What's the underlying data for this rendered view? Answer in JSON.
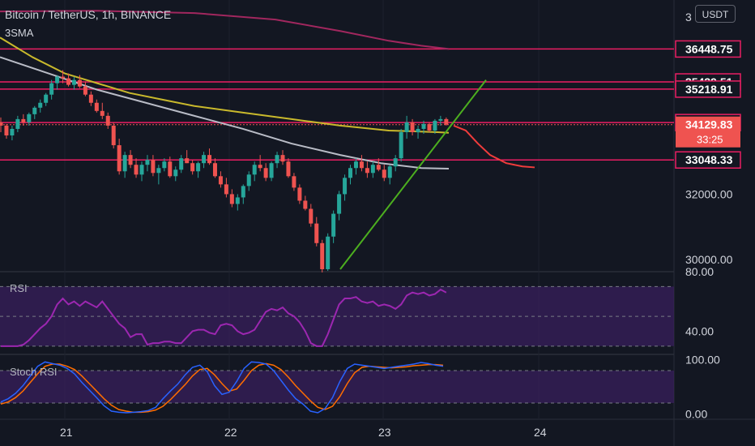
{
  "header": {
    "title": "Bitcoin / TetherUS, 1h, BINANCE",
    "indicator": "3SMA",
    "currency_button": "USDT"
  },
  "chart_data": [
    {
      "type": "candlestick",
      "title": "Bitcoin / TetherUS, 1h, BINANCE",
      "x_ticks": [
        "21",
        "22",
        "23",
        "24"
      ],
      "y_ticks": [
        32000.0,
        30000.0
      ],
      "ylim": [
        29650,
        37950
      ],
      "price_levels": [
        36448.75,
        35439.51,
        35218.91,
        34194.29,
        33048.33
      ],
      "current_price": 34129.83,
      "countdown": "33:25",
      "top_tick_partial": "3",
      "colors": {
        "up": "#26a69a",
        "down": "#ef5350",
        "levels": "#e91e63",
        "sma_fast": "#c9b92c",
        "sma_slow": "#b9bcc6",
        "sma_long": "#a1275e",
        "trendline": "#4caf1f",
        "projection": "#ef3c3c"
      },
      "candles": [
        [
          34200,
          34350,
          33900,
          34100
        ],
        [
          34100,
          34150,
          33700,
          33800
        ],
        [
          33800,
          34100,
          33650,
          34000
        ],
        [
          34000,
          34400,
          33900,
          34300
        ],
        [
          34300,
          34450,
          34100,
          34200
        ],
        [
          34200,
          34500,
          34100,
          34450
        ],
        [
          34450,
          34700,
          34300,
          34650
        ],
        [
          34650,
          34900,
          34500,
          34800
        ],
        [
          34800,
          35100,
          34700,
          35050
        ],
        [
          35050,
          35500,
          34900,
          35400
        ],
        [
          35400,
          35650,
          35200,
          35600
        ],
        [
          35600,
          35800,
          35400,
          35550
        ],
        [
          35550,
          35700,
          35300,
          35350
        ],
        [
          35350,
          35600,
          35200,
          35500
        ],
        [
          35500,
          35650,
          35250,
          35300
        ],
        [
          35300,
          35450,
          35000,
          35050
        ],
        [
          35050,
          35150,
          34700,
          34800
        ],
        [
          34800,
          34900,
          34500,
          34550
        ],
        [
          34550,
          34800,
          34300,
          34400
        ],
        [
          34400,
          34500,
          34000,
          34100
        ],
        [
          34100,
          34200,
          33400,
          33500
        ],
        [
          33500,
          33700,
          32600,
          32700
        ],
        [
          32700,
          33300,
          32500,
          33200
        ],
        [
          33200,
          33350,
          32800,
          32900
        ],
        [
          32900,
          33100,
          32500,
          32600
        ],
        [
          32600,
          33000,
          32400,
          32900
        ],
        [
          32900,
          33200,
          32700,
          33050
        ],
        [
          33050,
          33200,
          32550,
          32650
        ],
        [
          32650,
          32900,
          32300,
          32800
        ],
        [
          32800,
          33100,
          32700,
          33000
        ],
        [
          33000,
          33150,
          32500,
          32550
        ],
        [
          32550,
          32850,
          32400,
          32750
        ],
        [
          32750,
          33200,
          32650,
          33100
        ],
        [
          33100,
          33350,
          32950,
          32950
        ],
        [
          32950,
          33050,
          32600,
          32700
        ],
        [
          32700,
          33000,
          32500,
          32950
        ],
        [
          32950,
          33300,
          32800,
          33200
        ],
        [
          33200,
          33400,
          32900,
          32950
        ],
        [
          32950,
          33100,
          32500,
          32550
        ],
        [
          32550,
          32700,
          32200,
          32300
        ],
        [
          32300,
          32500,
          31900,
          32000
        ],
        [
          32000,
          32150,
          31600,
          31700
        ],
        [
          31700,
          32000,
          31500,
          31900
        ],
        [
          31900,
          32300,
          31700,
          32250
        ],
        [
          32250,
          32700,
          32100,
          32600
        ],
        [
          32600,
          33000,
          32400,
          32900
        ],
        [
          32900,
          33200,
          32700,
          32800
        ],
        [
          32800,
          32950,
          32400,
          32500
        ],
        [
          32500,
          33000,
          32400,
          32950
        ],
        [
          32950,
          33300,
          32800,
          33200
        ],
        [
          33200,
          33350,
          32900,
          33000
        ],
        [
          33000,
          33100,
          32500,
          32550
        ],
        [
          32550,
          32650,
          32100,
          32200
        ],
        [
          32200,
          32300,
          31700,
          31800
        ],
        [
          31800,
          31950,
          31500,
          31550
        ],
        [
          31550,
          31700,
          31000,
          31100
        ],
        [
          31100,
          31300,
          30400,
          30500
        ],
        [
          30500,
          30600,
          29600,
          29700
        ],
        [
          29700,
          30800,
          29650,
          30700
        ],
        [
          30700,
          31500,
          30500,
          31400
        ],
        [
          31400,
          32100,
          31200,
          32000
        ],
        [
          32000,
          32600,
          31800,
          32500
        ],
        [
          32500,
          32900,
          32300,
          32800
        ],
        [
          32800,
          33100,
          32600,
          33000
        ],
        [
          33000,
          33200,
          32700,
          32800
        ],
        [
          32800,
          33000,
          32500,
          32650
        ],
        [
          32650,
          33000,
          32500,
          32900
        ],
        [
          32900,
          33100,
          32700,
          32750
        ],
        [
          32750,
          32900,
          32400,
          32500
        ],
        [
          32500,
          32900,
          32300,
          32850
        ],
        [
          32850,
          33200,
          32700,
          33100
        ],
        [
          33100,
          34000,
          33000,
          33900
        ],
        [
          33900,
          34400,
          33700,
          34200
        ],
        [
          34200,
          34300,
          33800,
          33900
        ],
        [
          33900,
          34100,
          33700,
          34000
        ],
        [
          34000,
          34250,
          33850,
          34150
        ],
        [
          34150,
          34200,
          33900,
          33950
        ],
        [
          33950,
          34300,
          33850,
          34250
        ],
        [
          34250,
          34400,
          34100,
          34300
        ],
        [
          34300,
          34350,
          34100,
          34130
        ]
      ],
      "sma_fast": [
        [
          0,
          36800
        ],
        [
          40,
          36200
        ],
        [
          80,
          35700
        ],
        [
          120,
          35400
        ],
        [
          160,
          35100
        ],
        [
          200,
          34900
        ],
        [
          240,
          34700
        ],
        [
          300,
          34500
        ],
        [
          360,
          34300
        ],
        [
          420,
          34100
        ],
        [
          480,
          33950
        ],
        [
          540,
          33900
        ],
        [
          554,
          33880
        ]
      ],
      "sma_slow": [
        [
          0,
          36200
        ],
        [
          60,
          35700
        ],
        [
          120,
          35200
        ],
        [
          180,
          34800
        ],
        [
          240,
          34400
        ],
        [
          300,
          34000
        ],
        [
          360,
          33550
        ],
        [
          420,
          33200
        ],
        [
          470,
          32950
        ],
        [
          520,
          32800
        ],
        [
          554,
          32780
        ]
      ],
      "sma_long": [
        [
          0,
          37600
        ],
        [
          120,
          37620
        ],
        [
          240,
          37550
        ],
        [
          340,
          37350
        ],
        [
          420,
          37000
        ],
        [
          480,
          36700
        ],
        [
          520,
          36550
        ],
        [
          554,
          36450
        ]
      ],
      "projection": [
        [
          560,
          34100
        ],
        [
          575,
          33950
        ],
        [
          590,
          33550
        ],
        [
          605,
          33200
        ],
        [
          625,
          32950
        ],
        [
          645,
          32850
        ],
        [
          660,
          32820
        ]
      ],
      "trendline": [
        [
          420,
          29700
        ],
        [
          600,
          35500
        ]
      ]
    },
    {
      "type": "line",
      "title": "RSI",
      "y_ticks": [
        80.0,
        40.0
      ],
      "ylim": [
        25,
        80
      ],
      "band": [
        30,
        70
      ],
      "midline": 50,
      "colors": {
        "line": "#9c27b0",
        "band": "#3a1f5f"
      },
      "values": [
        30,
        30,
        30,
        30,
        31,
        34,
        38,
        42,
        45,
        50,
        58,
        62,
        58,
        60,
        57,
        60,
        58,
        56,
        60,
        55,
        50,
        45,
        42,
        36,
        38,
        38,
        31,
        32,
        32,
        33,
        33,
        32,
        32,
        36,
        40,
        41,
        41,
        39,
        38,
        44,
        45,
        44,
        40,
        38,
        39,
        41,
        47,
        53,
        55,
        54,
        56,
        52,
        50,
        46,
        40,
        32,
        30,
        30,
        38,
        48,
        58,
        62,
        62,
        63,
        60,
        59,
        60,
        57,
        58,
        57,
        55,
        58,
        64,
        66,
        65,
        66,
        64,
        65,
        68,
        66
      ]
    },
    {
      "type": "line",
      "title": "Stoch RSI",
      "y_ticks": [
        100.0,
        0.0
      ],
      "ylim": [
        -10,
        110
      ],
      "band": [
        20,
        80
      ],
      "colors": {
        "k": "#2962ff",
        "d": "#ff6d00",
        "band": "#3a1f5f"
      },
      "k": [
        22,
        28,
        38,
        52,
        70,
        88,
        96,
        93,
        90,
        84,
        74,
        58,
        44,
        30,
        15,
        5,
        3,
        2,
        3,
        4,
        6,
        12,
        28,
        42,
        55,
        72,
        86,
        90,
        78,
        52,
        36,
        40,
        60,
        84,
        96,
        95,
        92,
        80,
        62,
        44,
        28,
        18,
        5,
        2,
        10,
        30,
        60,
        84,
        92,
        90,
        88,
        86,
        84,
        86,
        88,
        90,
        92,
        95,
        93,
        90,
        88
      ],
      "d": [
        18,
        22,
        30,
        42,
        58,
        74,
        88,
        92,
        92,
        88,
        82,
        70,
        56,
        42,
        28,
        16,
        8,
        5,
        3,
        3,
        4,
        7,
        14,
        26,
        40,
        54,
        70,
        82,
        84,
        72,
        56,
        42,
        46,
        62,
        80,
        90,
        93,
        90,
        82,
        68,
        52,
        38,
        24,
        12,
        8,
        14,
        32,
        56,
        76,
        86,
        88,
        87,
        86,
        85,
        86,
        87,
        89,
        90,
        91,
        91,
        90
      ]
    }
  ]
}
